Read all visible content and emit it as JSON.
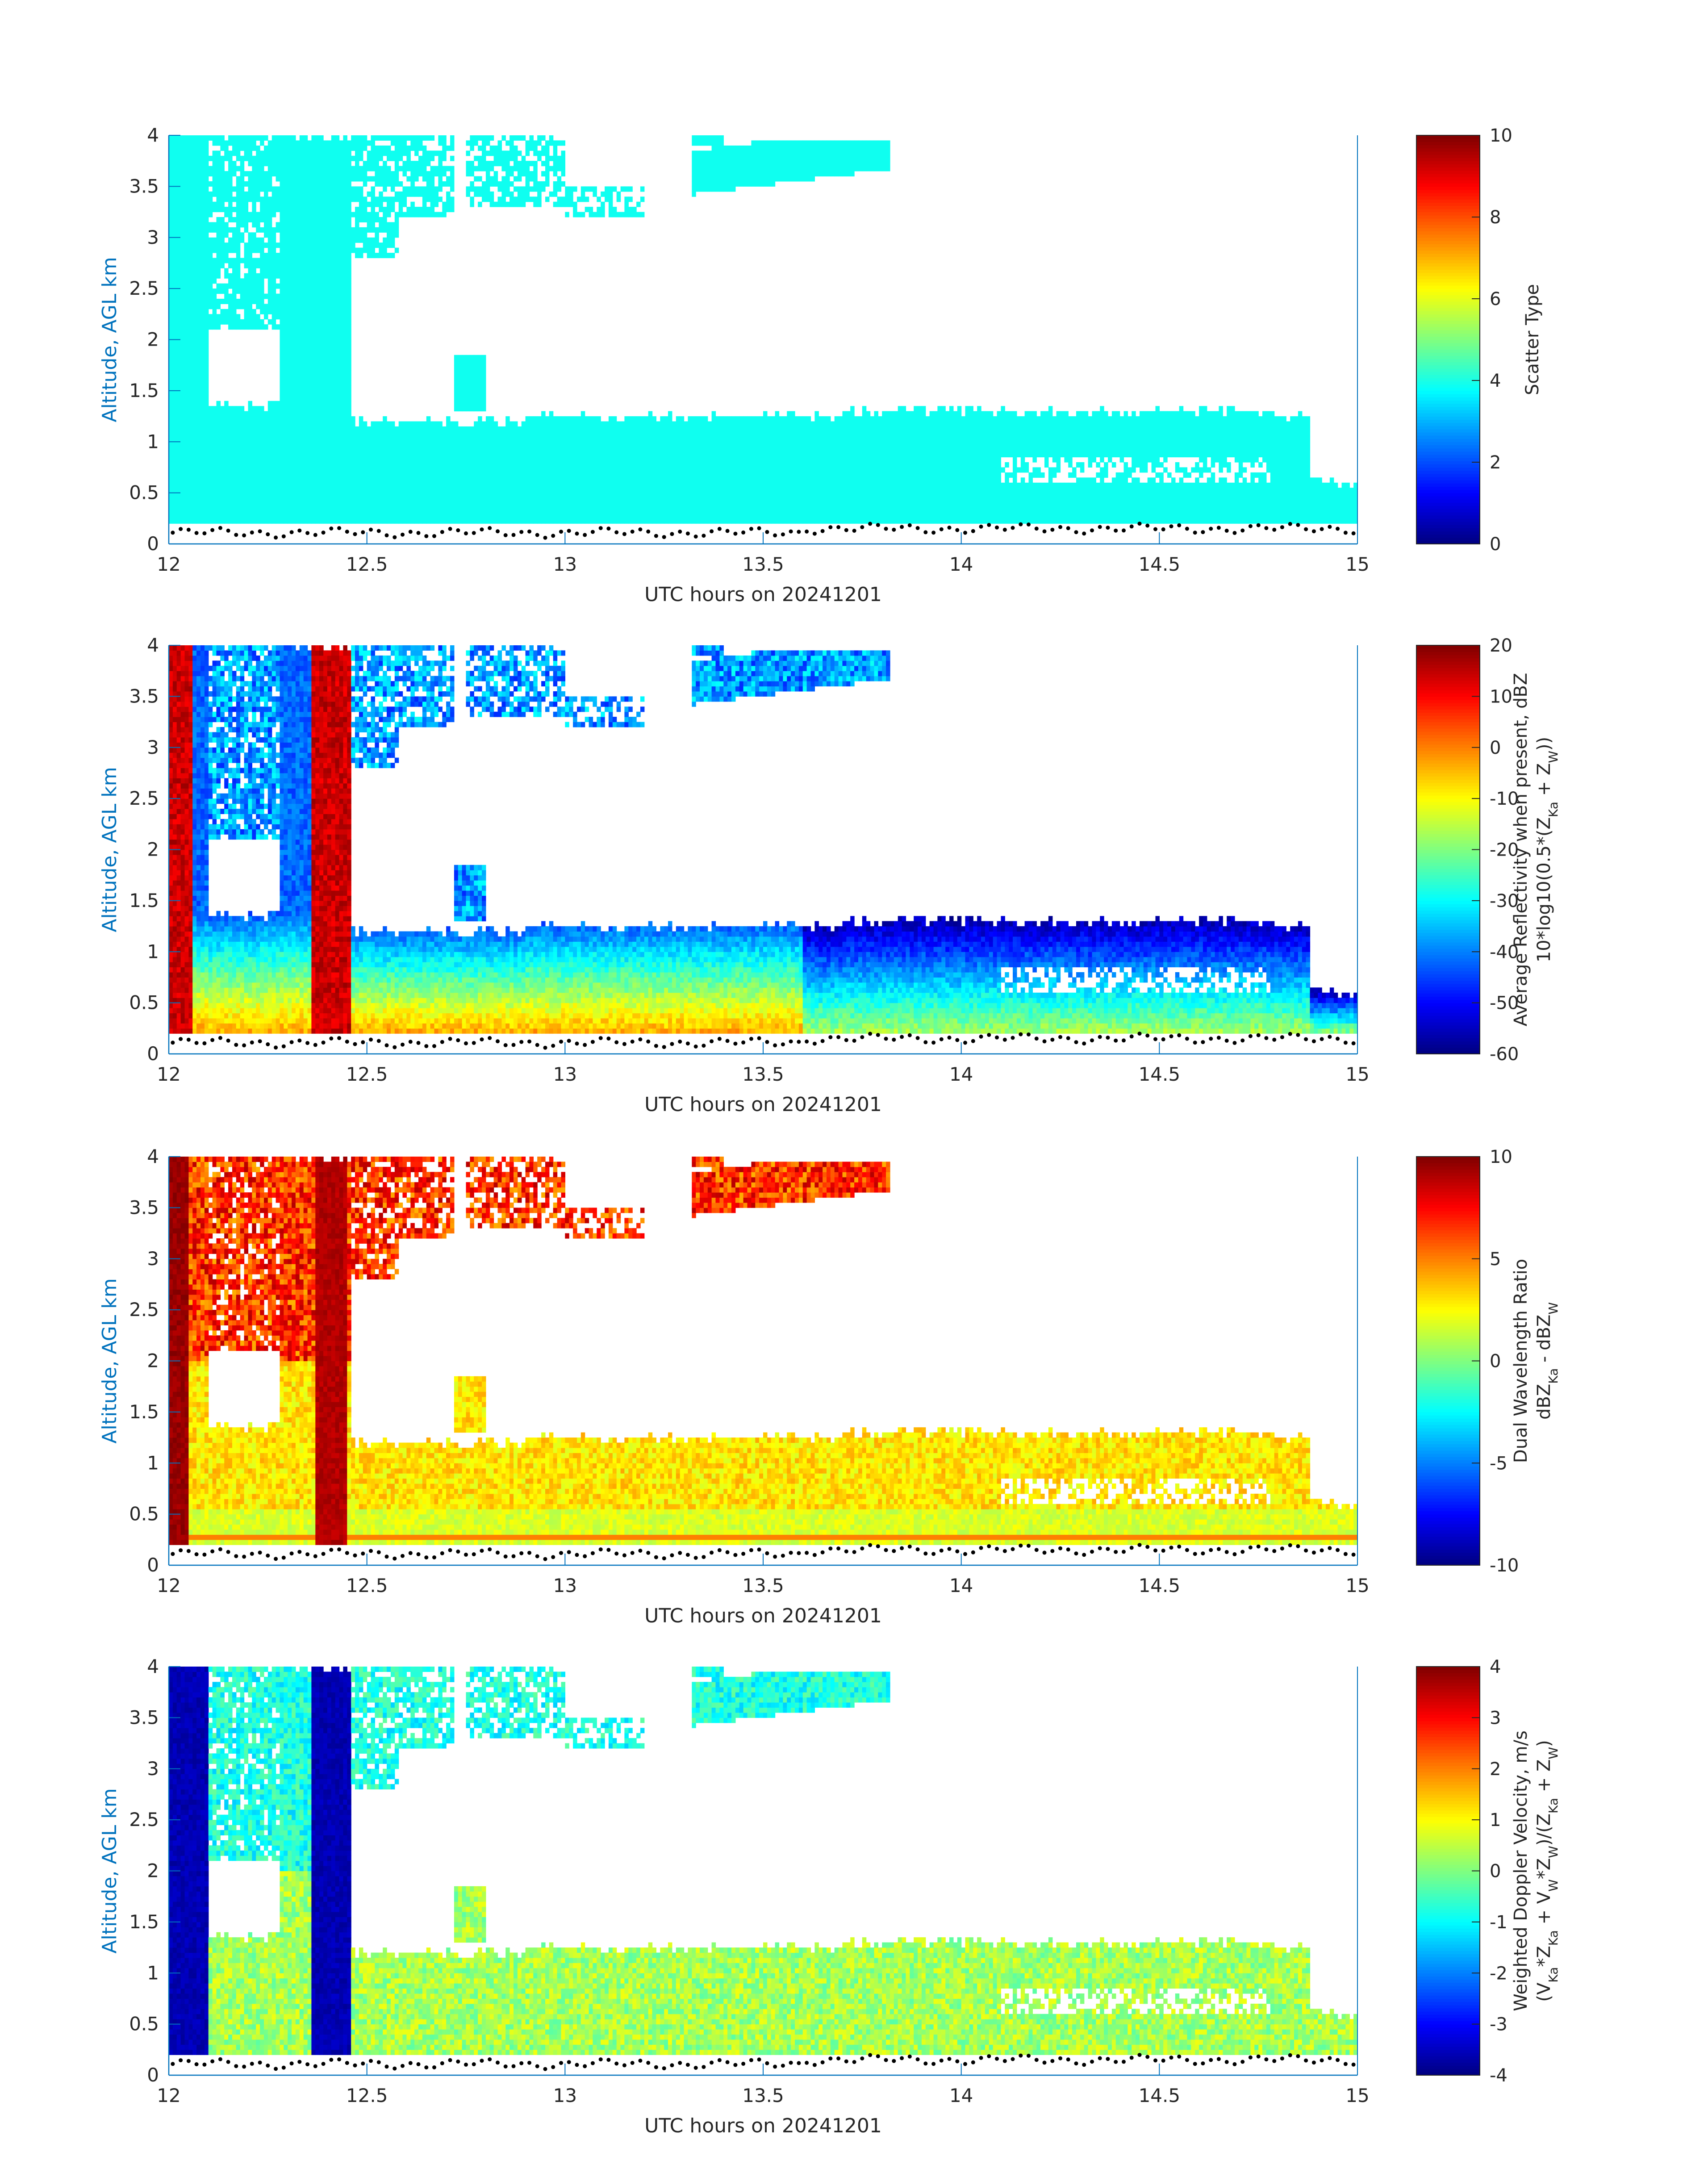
{
  "figure": {
    "axis_color": "#0072BD",
    "text_color": "#262626",
    "ground_marker_color": "#000000"
  },
  "chart_data": [
    {
      "type": "heatmap",
      "title": "",
      "xlabel": "UTC hours on 20241201",
      "ylabel": "Altitude, AGL km",
      "xlim": [
        12,
        15
      ],
      "ylim": [
        0,
        4
      ],
      "xticks": [
        "12",
        "12.5",
        "13",
        "13.5",
        "14",
        "14.5",
        "15"
      ],
      "yticks": [
        "0",
        "0.5",
        "1",
        "1.5",
        "2",
        "2.5",
        "3",
        "3.5",
        "4"
      ],
      "colorbar": {
        "label_lines": [
          "Scatter Type"
        ],
        "clim": [
          0,
          10
        ],
        "ticks": [
          "0",
          "2",
          "4",
          "6",
          "8",
          "10"
        ],
        "colormap": "jet"
      },
      "field": "scatter_type",
      "typical_value": 3.9
    },
    {
      "type": "heatmap",
      "title": "",
      "xlabel": "UTC hours on 20241201",
      "ylabel": "Altitude, AGL km",
      "xlim": [
        12,
        15
      ],
      "ylim": [
        0,
        4
      ],
      "xticks": [
        "12",
        "12.5",
        "13",
        "13.5",
        "14",
        "14.5",
        "15"
      ],
      "yticks": [
        "0",
        "0.5",
        "1",
        "1.5",
        "2",
        "2.5",
        "3",
        "3.5",
        "4"
      ],
      "colorbar": {
        "label_lines": [
          "Average Reflectivity when present, dBZ",
          "10*log10(0.5*(Z_Ka + Z_W))"
        ],
        "clim": [
          -60,
          20
        ],
        "ticks": [
          "-60",
          "-50",
          "-40",
          "-30",
          "-20",
          "-10",
          "0",
          "10",
          "20"
        ],
        "colormap": "jet"
      },
      "field": "reflectivity"
    },
    {
      "type": "heatmap",
      "title": "",
      "xlabel": "UTC hours on 20241201",
      "ylabel": "Altitude, AGL km",
      "xlim": [
        12,
        15
      ],
      "ylim": [
        0,
        4
      ],
      "xticks": [
        "12",
        "12.5",
        "13",
        "13.5",
        "14",
        "14.5",
        "15"
      ],
      "yticks": [
        "0",
        "0.5",
        "1",
        "1.5",
        "2",
        "2.5",
        "3",
        "3.5",
        "4"
      ],
      "colorbar": {
        "label_lines": [
          "Dual Wavelength Ratio",
          "dBZ_Ka - dBZ_W"
        ],
        "clim": [
          -10,
          10
        ],
        "ticks": [
          "-10",
          "-5",
          "0",
          "5",
          "10"
        ],
        "colormap": "jet"
      },
      "field": "dwr"
    },
    {
      "type": "heatmap",
      "title": "",
      "xlabel": "UTC hours on 20241201",
      "ylabel": "Altitude, AGL km",
      "xlim": [
        12,
        15
      ],
      "ylim": [
        0,
        4
      ],
      "xticks": [
        "12",
        "12.5",
        "13",
        "13.5",
        "14",
        "14.5",
        "15"
      ],
      "yticks": [
        "0",
        "0.5",
        "1",
        "1.5",
        "2",
        "2.5",
        "3",
        "3.5",
        "4"
      ],
      "colorbar": {
        "label_lines": [
          "Weighted Doppler Velocity, m/s",
          "(V_Ka*Z_Ka + V_W*Z_W)/(Z_Ka + Z_W)"
        ],
        "clim": [
          -4,
          4
        ],
        "ticks": [
          "-4",
          "-3",
          "-2",
          "-1",
          "0",
          "1",
          "2",
          "3",
          "4"
        ],
        "colormap": "jet"
      },
      "field": "velocity"
    }
  ]
}
